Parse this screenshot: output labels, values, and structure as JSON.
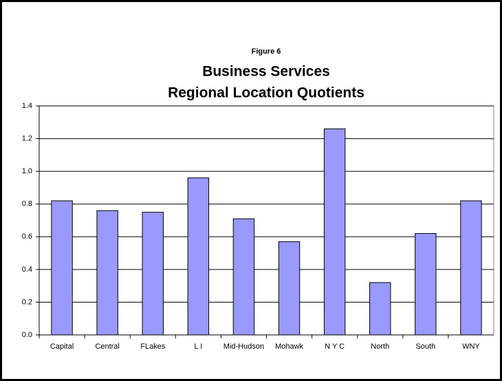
{
  "chart_data": {
    "type": "bar",
    "figure_label": "Figure 6",
    "title": [
      "Business Services",
      "Regional Location Quotients"
    ],
    "categories": [
      "Capital",
      "Central",
      "FLakes",
      "L I",
      "Mid-Hudson",
      "Mohawk",
      "N Y C",
      "North",
      "South",
      "WNY"
    ],
    "values": [
      0.82,
      0.76,
      0.75,
      0.96,
      0.71,
      0.57,
      1.26,
      0.32,
      0.62,
      0.82
    ],
    "color": "#9999ff",
    "ylim": [
      0,
      1.4
    ],
    "yticks": [
      {
        "value": 0,
        "label": "0.0"
      },
      0.2,
      0.4,
      0.6,
      0.8,
      {
        "value": 1,
        "label": "1.0"
      },
      1.2,
      1.4
    ],
    "grid": true
  }
}
